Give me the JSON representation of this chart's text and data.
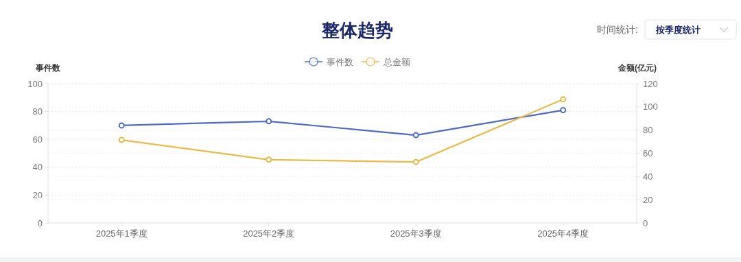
{
  "chart_data": {
    "type": "line",
    "title": "整体趋势",
    "ylabel": "事件数",
    "y2label": "金额(亿元)",
    "categories": [
      "2025年1季度",
      "2025年2季度",
      "2025年3季度",
      "2025年4季度"
    ],
    "series": [
      {
        "name": "事件数",
        "color": "#4e6ac2",
        "values": [
          70,
          73,
          63,
          81
        ]
      },
      {
        "name": "总金额",
        "color": "#e9b949",
        "values": [
          71.5,
          54.5,
          52.5,
          106.5
        ],
        "axis": "y2"
      }
    ],
    "ylim": [
      0,
      100
    ],
    "yticks": [
      0,
      20,
      40,
      60,
      80,
      100
    ],
    "y2lim": [
      0,
      120
    ],
    "y2ticks": [
      0,
      20,
      40,
      60,
      80,
      100,
      120
    ],
    "grid": true,
    "legend": "top",
    "marker": "circle",
    "line_style": "solid",
    "annotations": [
      "时间统计:",
      "按季度统计"
    ]
  }
}
